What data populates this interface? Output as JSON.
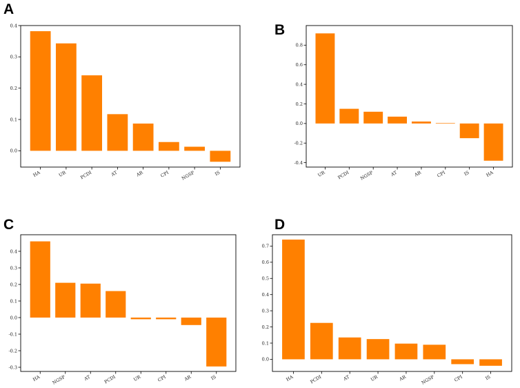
{
  "figure": {
    "bar_color": "#ff8000",
    "axis_color": "#000000"
  },
  "chart_data": [
    {
      "panel": "A",
      "type": "bar",
      "categories": [
        "HA",
        "UR",
        "PCDI",
        "AT",
        "AR",
        "CPI",
        "NGSP",
        "IS"
      ],
      "values": [
        0.382,
        0.343,
        0.241,
        0.117,
        0.087,
        0.028,
        0.013,
        -0.035
      ],
      "yticks": [
        0.0,
        0.1,
        0.2,
        0.3,
        0.4
      ],
      "ytick_labels": [
        "0.0",
        "0.1",
        "0.2",
        "0.3",
        "0.4"
      ],
      "ylim": [
        -0.052,
        0.4
      ],
      "title": "",
      "xlabel": "",
      "ylabel": ""
    },
    {
      "panel": "B",
      "type": "bar",
      "categories": [
        "UR",
        "PCDI",
        "NGSP",
        "AT",
        "AR",
        "CPI",
        "IS",
        "HA"
      ],
      "values": [
        0.92,
        0.15,
        0.12,
        0.07,
        0.02,
        0.005,
        -0.15,
        -0.38
      ],
      "yticks": [
        -0.4,
        -0.2,
        0.0,
        0.2,
        0.4,
        0.6,
        0.8
      ],
      "ytick_labels": [
        "-0.4",
        "-0.2",
        "0.0",
        "0.2",
        "0.4",
        "0.6",
        "0.8"
      ],
      "ylim": [
        -0.445,
        1.0
      ],
      "title": "",
      "xlabel": "",
      "ylabel": ""
    },
    {
      "panel": "C",
      "type": "bar",
      "categories": [
        "HA",
        "NGSP",
        "AT",
        "PCDI",
        "UR",
        "CPI",
        "AR",
        "IS"
      ],
      "values": [
        0.46,
        0.21,
        0.205,
        0.16,
        -0.01,
        -0.01,
        -0.045,
        -0.295
      ],
      "yticks": [
        -0.3,
        -0.2,
        -0.1,
        0.0,
        0.1,
        0.2,
        0.3,
        0.4
      ],
      "ytick_labels": [
        "-0.3",
        "-0.2",
        "-0.1",
        "0.0",
        "0.1",
        "0.2",
        "0.3",
        "0.4"
      ],
      "ylim": [
        -0.325,
        0.5
      ],
      "title": "",
      "xlabel": "",
      "ylabel": ""
    },
    {
      "panel": "D",
      "type": "bar",
      "categories": [
        "HA",
        "PCDI",
        "AT",
        "UR",
        "AR",
        "NGSP",
        "CPI",
        "IS"
      ],
      "values": [
        0.74,
        0.225,
        0.135,
        0.125,
        0.097,
        0.09,
        -0.03,
        -0.04
      ],
      "yticks": [
        0.0,
        0.1,
        0.2,
        0.3,
        0.4,
        0.5,
        0.6,
        0.7
      ],
      "ytick_labels": [
        "0.0",
        "0.1",
        "0.2",
        "0.3",
        "0.4",
        "0.5",
        "0.6",
        "0.7"
      ],
      "ylim": [
        -0.075,
        0.77
      ],
      "title": "",
      "xlabel": "",
      "ylabel": ""
    }
  ]
}
